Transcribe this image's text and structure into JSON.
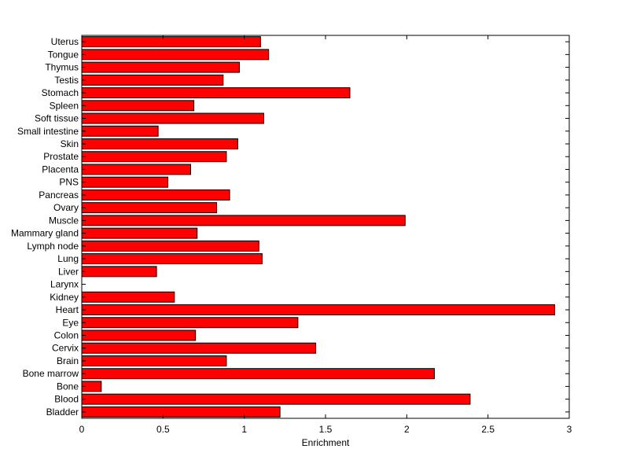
{
  "chart_data": {
    "type": "bar",
    "orientation": "horizontal",
    "xlabel": "Enrichment",
    "ylabel": "",
    "title": "",
    "xlim": [
      0,
      3
    ],
    "xticks": [
      {
        "value": 0,
        "label": "0"
      },
      {
        "value": 0.5,
        "label": "0.5"
      },
      {
        "value": 1,
        "label": "1"
      },
      {
        "value": 1.5,
        "label": "1.5"
      },
      {
        "value": 2,
        "label": "2"
      },
      {
        "value": 2.5,
        "label": "2.5"
      },
      {
        "value": 3,
        "label": "3"
      }
    ],
    "grid": false,
    "bar_color": "#ff0000",
    "categories": [
      "Bladder",
      "Blood",
      "Bone",
      "Bone marrow",
      "Brain",
      "Cervix",
      "Colon",
      "Eye",
      "Heart",
      "Kidney",
      "Larynx",
      "Liver",
      "Lung",
      "Lymph node",
      "Mammary gland",
      "Muscle",
      "Ovary",
      "Pancreas",
      "PNS",
      "Placenta",
      "Prostate",
      "Skin",
      "Small intestine",
      "Soft tissue",
      "Spleen",
      "Stomach",
      "Testis",
      "Thymus",
      "Tongue",
      "Uterus"
    ],
    "values": [
      1.22,
      2.39,
      0.12,
      2.17,
      0.89,
      1.44,
      0.7,
      1.33,
      2.91,
      0.57,
      0.0,
      0.46,
      1.11,
      1.09,
      0.71,
      1.99,
      0.83,
      0.91,
      0.53,
      0.67,
      0.89,
      0.96,
      0.47,
      1.12,
      0.69,
      1.65,
      0.87,
      0.97,
      1.15,
      1.1
    ]
  }
}
